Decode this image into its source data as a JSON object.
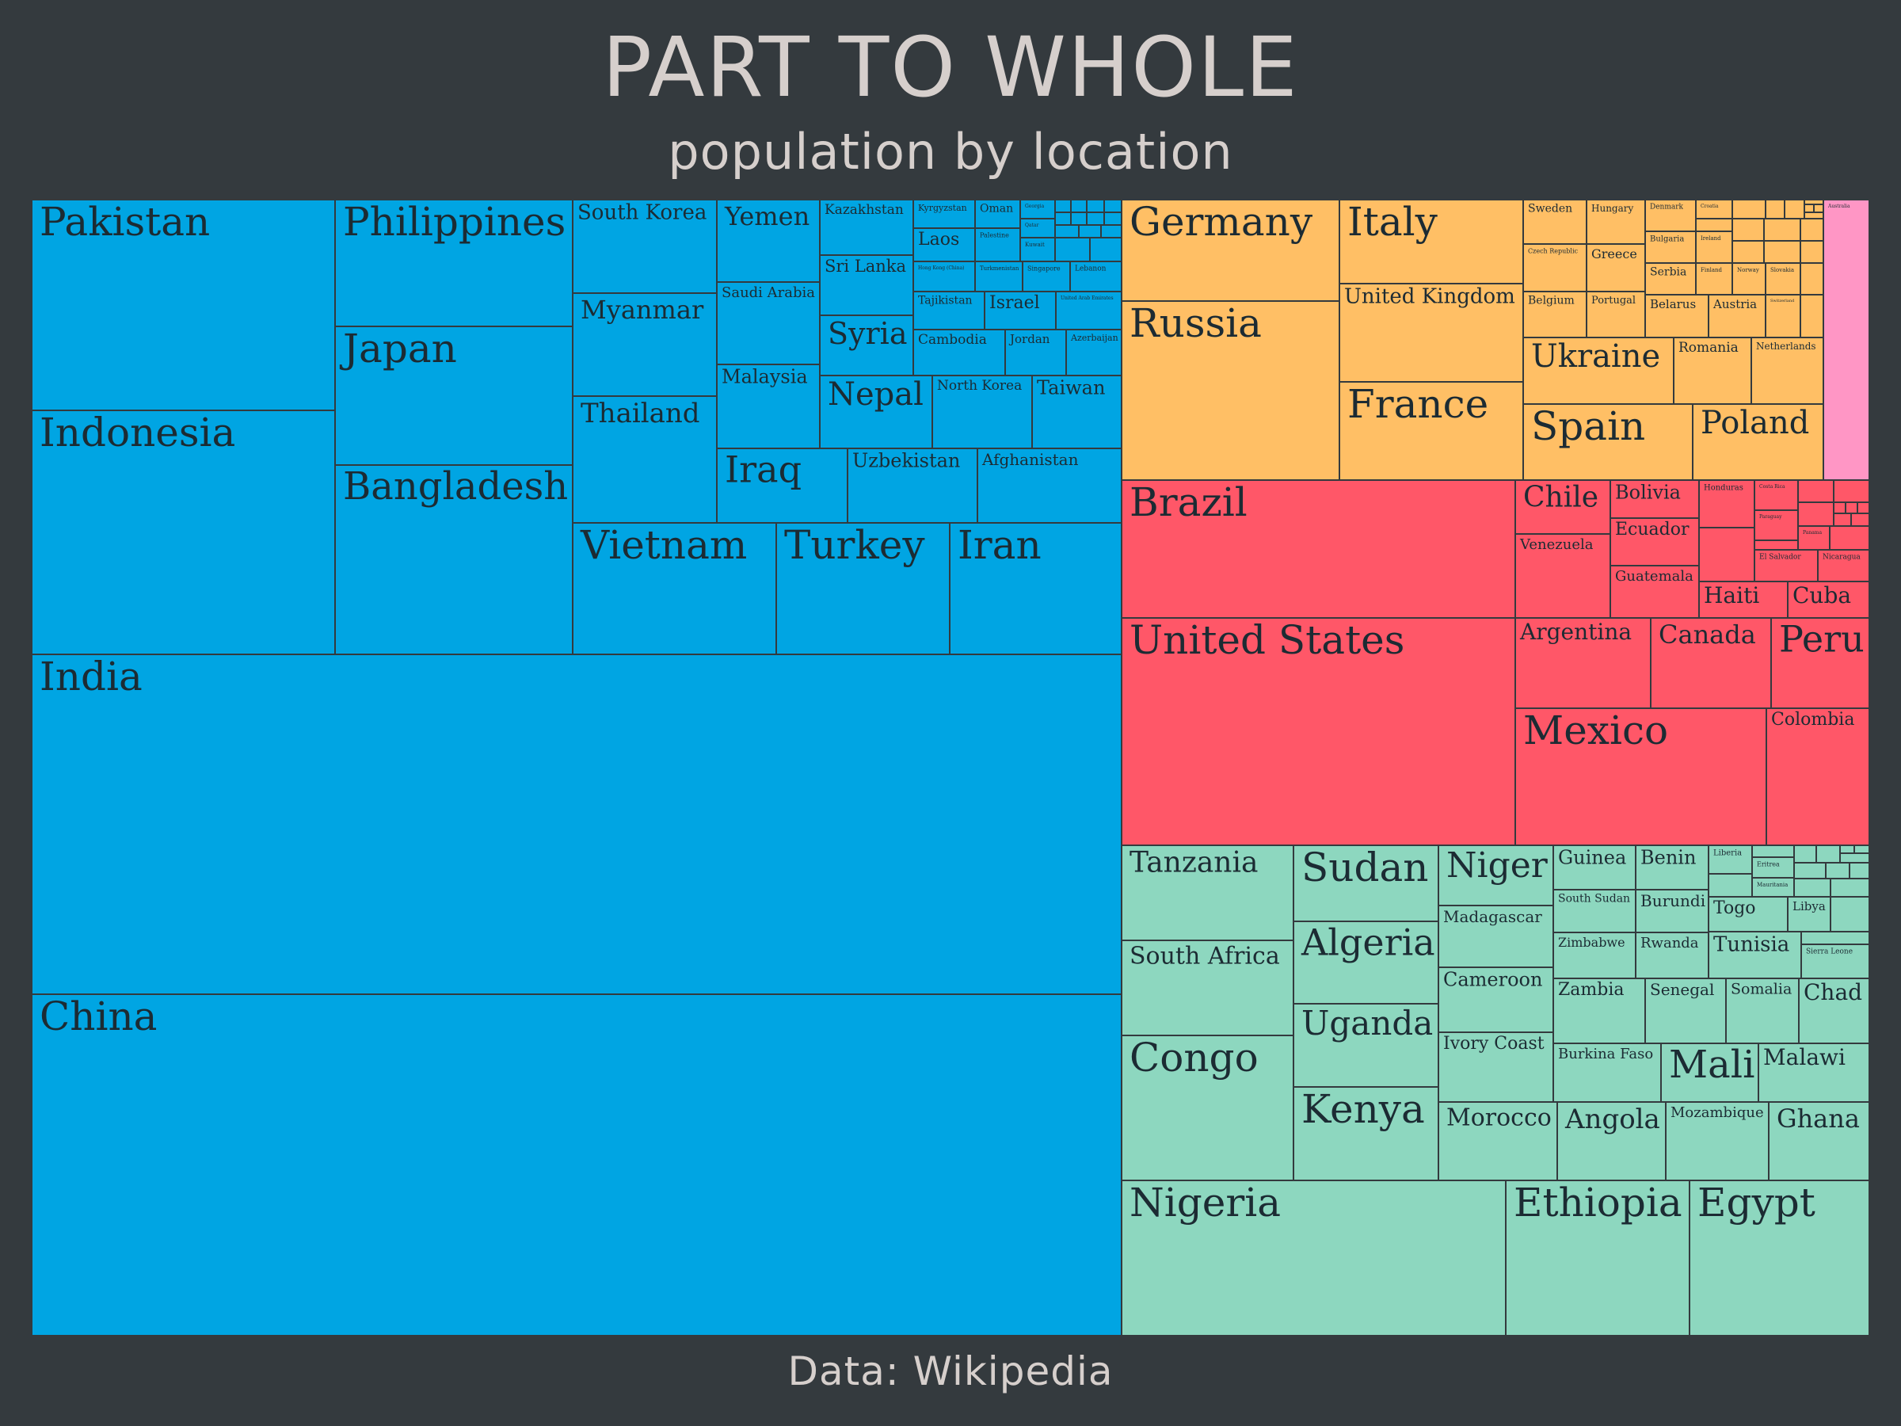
{
  "title": "PART TO WHOLE",
  "subtitle": "population by location",
  "caption": "Data: Wikipedia",
  "chart_data": {
    "type": "treemap",
    "title": "PART TO WHOLE",
    "subtitle": "population by location",
    "groups": [
      {
        "color": "#00a5e3",
        "items": [
          {
            "name": "India",
            "value": 1380
          },
          {
            "name": "China",
            "value": 1402
          },
          {
            "name": "Pakistan",
            "value": 225
          },
          {
            "name": "Indonesia",
            "value": 273
          },
          {
            "name": "Philippines",
            "value": 109
          },
          {
            "name": "Japan",
            "value": 126
          },
          {
            "name": "Bangladesh",
            "value": 165
          },
          {
            "name": "South Korea",
            "value": 52
          },
          {
            "name": "Myanmar",
            "value": 54
          },
          {
            "name": "Thailand",
            "value": 70
          },
          {
            "name": "Yemen",
            "value": 30
          },
          {
            "name": "Saudi Arabia",
            "value": 35
          },
          {
            "name": "Malaysia",
            "value": 33
          },
          {
            "name": "Kazakhstan",
            "value": 19
          },
          {
            "name": "Sri Lanka",
            "value": 22
          },
          {
            "name": "Syria",
            "value": 18
          },
          {
            "name": "Kyrgyzstan",
            "value": 7
          },
          {
            "name": "Oman",
            "value": 5
          },
          {
            "name": "Georgia",
            "value": 4
          },
          {
            "name": "Laos",
            "value": 7
          },
          {
            "name": "Palestine",
            "value": 5
          },
          {
            "name": "Kuwait",
            "value": 4
          },
          {
            "name": "Qatar",
            "value": 3
          },
          {
            "name": "Hong Kong (China)",
            "value": 7.5
          },
          {
            "name": "Turkmenistan",
            "value": 6
          },
          {
            "name": "Singapore",
            "value": 5.7
          },
          {
            "name": "Lebanon",
            "value": 6.8
          },
          {
            "name": "Tajikistan",
            "value": 9.5
          },
          {
            "name": "Israel",
            "value": 9.3
          },
          {
            "name": "United Arab Emirates",
            "value": 9.9
          },
          {
            "name": "Cambodia",
            "value": 16.7
          },
          {
            "name": "Jordan",
            "value": 10.2
          },
          {
            "name": "Azerbaijan",
            "value": 10.1
          },
          {
            "name": "Nepal",
            "value": 29.1
          },
          {
            "name": "North Korea",
            "value": 25.8
          },
          {
            "name": "Taiwan",
            "value": 23.6
          },
          {
            "name": "Iraq",
            "value": 40
          },
          {
            "name": "Uzbekistan",
            "value": 34
          },
          {
            "name": "Afghanistan",
            "value": 38
          },
          {
            "name": "Vietnam",
            "value": 97
          },
          {
            "name": "Turkey",
            "value": 84
          },
          {
            "name": "Iran",
            "value": 84
          }
        ]
      },
      {
        "color": "#ffbf65",
        "items": [
          {
            "name": "Germany",
            "value": 83
          },
          {
            "name": "Russia",
            "value": 146
          },
          {
            "name": "Italy",
            "value": 60
          },
          {
            "name": "United Kingdom",
            "value": 67
          },
          {
            "name": "France",
            "value": 67
          },
          {
            "name": "Sweden",
            "value": 10.3
          },
          {
            "name": "Hungary",
            "value": 9.7
          },
          {
            "name": "Denmark",
            "value": 5.8
          },
          {
            "name": "Croatia",
            "value": 4
          },
          {
            "name": "Czech Republic",
            "value": 10.7
          },
          {
            "name": "Greece",
            "value": 10.7
          },
          {
            "name": "Bulgaria",
            "value": 6.9
          },
          {
            "name": "Ireland",
            "value": 5
          },
          {
            "name": "Serbia",
            "value": 6.9
          },
          {
            "name": "Finland",
            "value": 5.5
          },
          {
            "name": "Norway",
            "value": 5.4
          },
          {
            "name": "Slovakia",
            "value": 5.5
          },
          {
            "name": "Belgium",
            "value": 11.5
          },
          {
            "name": "Portugal",
            "value": 10.3
          },
          {
            "name": "Belarus",
            "value": 9.4
          },
          {
            "name": "Austria",
            "value": 8.9
          },
          {
            "name": "Switzerland",
            "value": 8.6
          },
          {
            "name": "Ukraine",
            "value": 41.6
          },
          {
            "name": "Romania",
            "value": 19.3
          },
          {
            "name": "Netherlands",
            "value": 17.5
          },
          {
            "name": "Spain",
            "value": 47.4
          },
          {
            "name": "Poland",
            "value": 38.3
          }
        ]
      },
      {
        "color": "#ff96c5",
        "items": [
          {
            "name": "Australia",
            "value": 25.7
          }
        ]
      },
      {
        "color": "#ff5768",
        "items": [
          {
            "name": "Brazil",
            "value": 212
          },
          {
            "name": "United States",
            "value": 331
          },
          {
            "name": "Chile",
            "value": 19.1
          },
          {
            "name": "Venezuela",
            "value": 28.4
          },
          {
            "name": "Bolivia",
            "value": 11.7
          },
          {
            "name": "Ecuador",
            "value": 17.6
          },
          {
            "name": "Guatemala",
            "value": 16.9
          },
          {
            "name": "Honduras",
            "value": 9.9
          },
          {
            "name": "Costa Rica",
            "value": 5.1
          },
          {
            "name": "Paraguay",
            "value": 7.1
          },
          {
            "name": "Panama",
            "value": 4.3
          },
          {
            "name": "El Salvador",
            "value": 6.5
          },
          {
            "name": "Nicaragua",
            "value": 6.6
          },
          {
            "name": "Haiti",
            "value": 11.4
          },
          {
            "name": "Cuba",
            "value": 11.3
          },
          {
            "name": "Argentina",
            "value": 45.4
          },
          {
            "name": "Canada",
            "value": 38
          },
          {
            "name": "Peru",
            "value": 33
          },
          {
            "name": "Mexico",
            "value": 128
          },
          {
            "name": "Colombia",
            "value": 51
          }
        ]
      },
      {
        "color": "#8dd7bf",
        "items": [
          {
            "name": "Nigeria",
            "value": 206
          },
          {
            "name": "Ethiopia",
            "value": 115
          },
          {
            "name": "Egypt",
            "value": 102
          },
          {
            "name": "Tanzania",
            "value": 60
          },
          {
            "name": "South Africa",
            "value": 59
          },
          {
            "name": "Congo",
            "value": 90
          },
          {
            "name": "Sudan",
            "value": 44
          },
          {
            "name": "Algeria",
            "value": 44
          },
          {
            "name": "Uganda",
            "value": 46
          },
          {
            "name": "Kenya",
            "value": 54
          },
          {
            "name": "Niger",
            "value": 24
          },
          {
            "name": "Madagascar",
            "value": 28
          },
          {
            "name": "Cameroon",
            "value": 27
          },
          {
            "name": "Ivory Coast",
            "value": 26
          },
          {
            "name": "Morocco",
            "value": 36
          },
          {
            "name": "Angola",
            "value": 33
          },
          {
            "name": "Mozambique",
            "value": 31
          },
          {
            "name": "Ghana",
            "value": 31
          },
          {
            "name": "Guinea",
            "value": 13
          },
          {
            "name": "Benin",
            "value": 12
          },
          {
            "name": "South Sudan",
            "value": 11
          },
          {
            "name": "Burundi",
            "value": 12
          },
          {
            "name": "Zimbabwe",
            "value": 15
          },
          {
            "name": "Rwanda",
            "value": 13
          },
          {
            "name": "Liberia",
            "value": 5
          },
          {
            "name": "Eritrea",
            "value": 3.5
          },
          {
            "name": "Mauritania",
            "value": 4.6
          },
          {
            "name": "Togo",
            "value": 8.3
          },
          {
            "name": "Libya",
            "value": 6.9
          },
          {
            "name": "Tunisia",
            "value": 11.8
          },
          {
            "name": "Sierra Leone",
            "value": 8
          },
          {
            "name": "Zambia",
            "value": 18
          },
          {
            "name": "Senegal",
            "value": 16.7
          },
          {
            "name": "Somalia",
            "value": 15.9
          },
          {
            "name": "Chad",
            "value": 16.4
          },
          {
            "name": "Burkina Faso",
            "value": 21
          },
          {
            "name": "Mali",
            "value": 20
          },
          {
            "name": "Malawi",
            "value": 19
          }
        ]
      }
    ]
  }
}
